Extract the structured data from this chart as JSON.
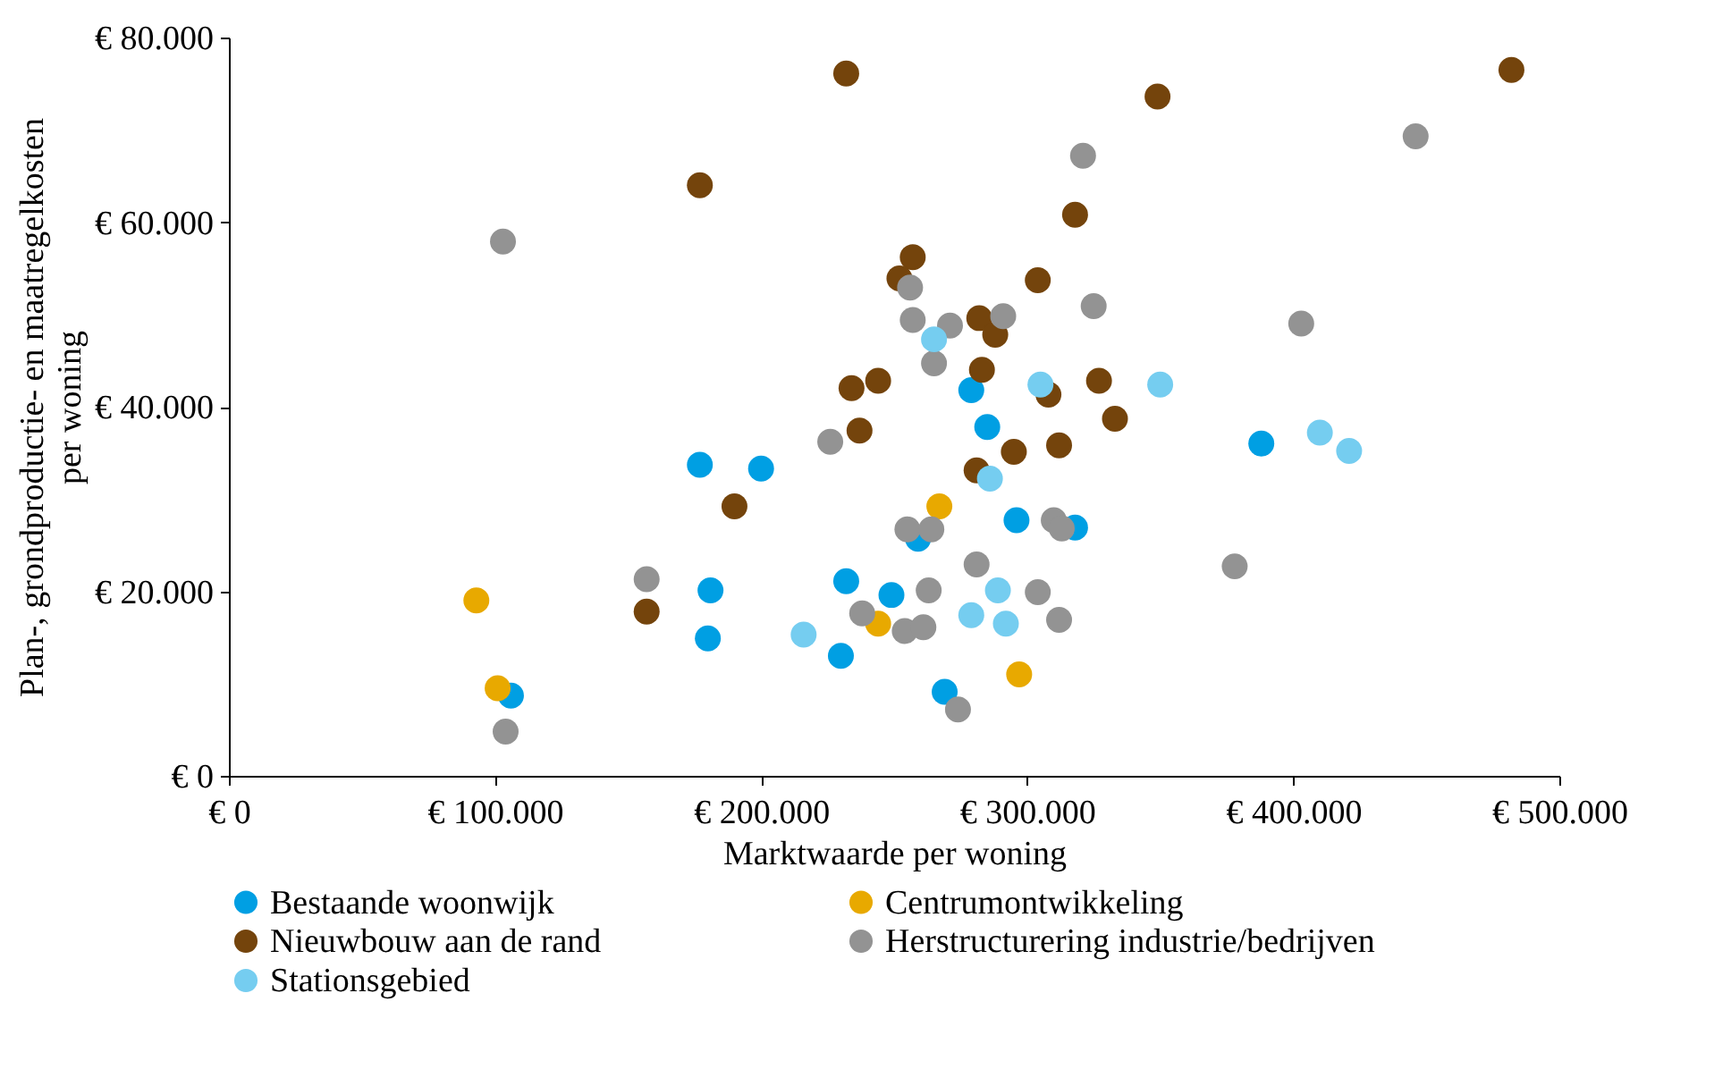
{
  "chart_data": {
    "type": "scatter",
    "xlabel": "Marktwaarde per woning",
    "ylabel": "Plan-, grondproductie- en maatregelkosten\nper woning",
    "xlim": [
      0,
      500000
    ],
    "ylim": [
      0,
      80000
    ],
    "xticks": [
      {
        "value": 0,
        "label": "€ 0"
      },
      {
        "value": 100000,
        "label": "€ 100.000"
      },
      {
        "value": 200000,
        "label": "€ 200.000"
      },
      {
        "value": 300000,
        "label": "€ 300.000"
      },
      {
        "value": 400000,
        "label": "€ 400.000"
      },
      {
        "value": 500000,
        "label": "€ 500.000"
      }
    ],
    "yticks": [
      {
        "value": 0,
        "label": "€ 0"
      },
      {
        "value": 20000,
        "label": "€ 20.000"
      },
      {
        "value": 40000,
        "label": "€ 40.000"
      },
      {
        "value": 60000,
        "label": "€ 60.000"
      },
      {
        "value": 80000,
        "label": "€ 80.000"
      }
    ],
    "grid": false,
    "legend": "bottom",
    "marker": "circle",
    "series": [
      {
        "name": "Bestaande woonwijk",
        "color": "#009fe3",
        "x": [
          177000,
          200000,
          181000,
          180000,
          106000,
          232000,
          249000,
          230000,
          269000,
          279000,
          285000,
          259000,
          296000,
          318000,
          388000
        ],
        "values": [
          33700,
          33300,
          20100,
          14900,
          8700,
          21100,
          19600,
          13000,
          9100,
          41800,
          37800,
          25700,
          27700,
          26900,
          36000
        ]
      },
      {
        "name": "Centrumontwikkeling",
        "color": "#e8a900",
        "x": [
          93000,
          101000,
          244000,
          267000,
          297000
        ],
        "values": [
          19000,
          9500,
          16500,
          29200,
          11000
        ]
      },
      {
        "name": "Nieuwbouw aan de rand",
        "color": "#74440c",
        "x": [
          232000,
          177000,
          190000,
          157000,
          349000,
          482000,
          318000,
          257000,
          252000,
          304000,
          282000,
          288000,
          234000,
          244000,
          237000,
          283000,
          308000,
          327000,
          333000,
          295000,
          312000,
          281000
        ],
        "values": [
          76100,
          64000,
          29200,
          17800,
          73600,
          76500,
          60800,
          56200,
          53900,
          53700,
          49600,
          47800,
          42000,
          42800,
          37400,
          44000,
          41300,
          42800,
          38700,
          35100,
          35800,
          33100
        ]
      },
      {
        "name": "Herstructurering industrie/bedrijven",
        "color": "#939393",
        "x": [
          103000,
          104000,
          157000,
          226000,
          256000,
          257000,
          271000,
          291000,
          265000,
          321000,
          325000,
          446000,
          403000,
          378000,
          255000,
          264000,
          281000,
          263000,
          238000,
          254000,
          261000,
          304000,
          312000,
          310000,
          313000,
          274000
        ],
        "values": [
          57900,
          4800,
          21300,
          36200,
          52900,
          49400,
          48800,
          49800,
          44700,
          67200,
          50900,
          69300,
          49000,
          22700,
          26700,
          26700,
          22900,
          20100,
          17600,
          15700,
          16100,
          19900,
          16900,
          27700,
          26800,
          7200
        ]
      },
      {
        "name": "Stationsgebied",
        "color": "#75cdf0",
        "x": [
          265000,
          305000,
          350000,
          286000,
          410000,
          421000,
          216000,
          279000,
          289000,
          292000
        ],
        "values": [
          47300,
          42400,
          42400,
          32200,
          37200,
          35200,
          15300,
          17400,
          20100,
          16500
        ]
      }
    ]
  }
}
